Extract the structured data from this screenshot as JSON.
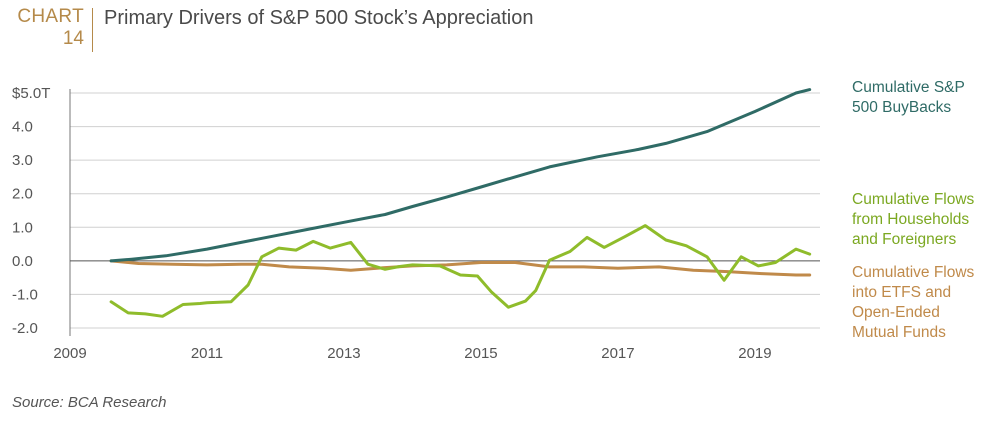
{
  "header": {
    "chart_word": "CHART",
    "chart_number": "14",
    "title": "Primary Drivers of S&P 500 Stock’s Appreciation"
  },
  "source": "Source: BCA Research",
  "colors": {
    "buybacks": "#2f6b66",
    "households": "#8fbc2b",
    "etfs": "#c08a4a",
    "grid": "#d0d0d0",
    "zero_line": "#555555",
    "tick_text": "#555555",
    "header_accent": "#b58a4a"
  },
  "chart_data": {
    "type": "line",
    "title": "Primary Drivers of S&P 500 Stock’s Appreciation",
    "xlabel": "",
    "ylabel": "",
    "xlim": [
      2009.0,
      2019.95
    ],
    "ylim": [
      -2.0,
      5.0
    ],
    "grid": true,
    "legend_placement": "right",
    "x_ticks": [
      2009,
      2011,
      2013,
      2015,
      2017,
      2019
    ],
    "x_tick_labels": [
      "2009",
      "2011",
      "2013",
      "2015",
      "2017",
      "2019"
    ],
    "y_ticks": [
      5,
      4,
      3,
      2,
      1,
      0,
      -1,
      -2
    ],
    "y_tick_labels": [
      "$5.0T",
      "4.0",
      "3.0",
      "2.0",
      "1.0",
      "0.0",
      "-1.0",
      "-2.0"
    ],
    "series": [
      {
        "name": "Cumulative S&P 500 BuyBacks",
        "color": "#2f6b66",
        "points": [
          [
            2009.6,
            0.0
          ],
          [
            2009.9,
            0.05
          ],
          [
            2010.4,
            0.15
          ],
          [
            2011.0,
            0.35
          ],
          [
            2011.5,
            0.55
          ],
          [
            2012.0,
            0.75
          ],
          [
            2012.5,
            0.95
          ],
          [
            2013.0,
            1.15
          ],
          [
            2013.6,
            1.38
          ],
          [
            2014.0,
            1.62
          ],
          [
            2014.5,
            1.9
          ],
          [
            2015.0,
            2.2
          ],
          [
            2015.5,
            2.5
          ],
          [
            2016.0,
            2.8
          ],
          [
            2016.7,
            3.1
          ],
          [
            2017.3,
            3.32
          ],
          [
            2017.7,
            3.5
          ],
          [
            2018.3,
            3.85
          ],
          [
            2019.0,
            4.45
          ],
          [
            2019.6,
            5.0
          ],
          [
            2019.8,
            5.1
          ]
        ]
      },
      {
        "name": "Cumulative Flows from Households and Foreigners",
        "color": "#8fbc2b",
        "points": [
          [
            2009.6,
            -1.22
          ],
          [
            2009.85,
            -1.55
          ],
          [
            2010.1,
            -1.58
          ],
          [
            2010.35,
            -1.65
          ],
          [
            2010.65,
            -1.3
          ],
          [
            2010.9,
            -1.27
          ],
          [
            2011.0,
            -1.25
          ],
          [
            2011.35,
            -1.22
          ],
          [
            2011.6,
            -0.72
          ],
          [
            2011.8,
            0.12
          ],
          [
            2012.05,
            0.38
          ],
          [
            2012.3,
            0.32
          ],
          [
            2012.55,
            0.58
          ],
          [
            2012.8,
            0.38
          ],
          [
            2013.1,
            0.55
          ],
          [
            2013.35,
            -0.1
          ],
          [
            2013.6,
            -0.25
          ],
          [
            2013.8,
            -0.17
          ],
          [
            2014.0,
            -0.12
          ],
          [
            2014.4,
            -0.15
          ],
          [
            2014.7,
            -0.42
          ],
          [
            2014.95,
            -0.45
          ],
          [
            2015.15,
            -0.92
          ],
          [
            2015.4,
            -1.38
          ],
          [
            2015.65,
            -1.2
          ],
          [
            2015.8,
            -0.88
          ],
          [
            2016.0,
            0.02
          ],
          [
            2016.3,
            0.28
          ],
          [
            2016.55,
            0.7
          ],
          [
            2016.8,
            0.4
          ],
          [
            2017.1,
            0.72
          ],
          [
            2017.4,
            1.05
          ],
          [
            2017.7,
            0.62
          ],
          [
            2018.0,
            0.45
          ],
          [
            2018.3,
            0.12
          ],
          [
            2018.55,
            -0.58
          ],
          [
            2018.8,
            0.12
          ],
          [
            2019.05,
            -0.15
          ],
          [
            2019.3,
            -0.05
          ],
          [
            2019.6,
            0.35
          ],
          [
            2019.8,
            0.2
          ]
        ]
      },
      {
        "name": "Cumulative Flows into ETFS and Open-Ended Mutual Funds",
        "color": "#c08a4a",
        "points": [
          [
            2009.6,
            0.0
          ],
          [
            2010.0,
            -0.08
          ],
          [
            2010.5,
            -0.1
          ],
          [
            2011.0,
            -0.12
          ],
          [
            2011.5,
            -0.1
          ],
          [
            2011.8,
            -0.1
          ],
          [
            2012.2,
            -0.18
          ],
          [
            2012.7,
            -0.22
          ],
          [
            2013.1,
            -0.28
          ],
          [
            2013.6,
            -0.2
          ],
          [
            2014.0,
            -0.15
          ],
          [
            2014.5,
            -0.12
          ],
          [
            2015.0,
            -0.05
          ],
          [
            2015.5,
            -0.05
          ],
          [
            2016.0,
            -0.18
          ],
          [
            2016.5,
            -0.18
          ],
          [
            2017.0,
            -0.22
          ],
          [
            2017.6,
            -0.18
          ],
          [
            2018.1,
            -0.28
          ],
          [
            2018.6,
            -0.32
          ],
          [
            2019.1,
            -0.38
          ],
          [
            2019.6,
            -0.42
          ],
          [
            2019.8,
            -0.42
          ]
        ]
      }
    ]
  },
  "legend": {
    "buybacks": "Cumulative S&P\n500 BuyBacks",
    "households": "Cumulative Flows\nfrom Households\nand Foreigners",
    "etfs": "Cumulative Flows\ninto ETFS and\nOpen-Ended\nMutual Funds"
  }
}
